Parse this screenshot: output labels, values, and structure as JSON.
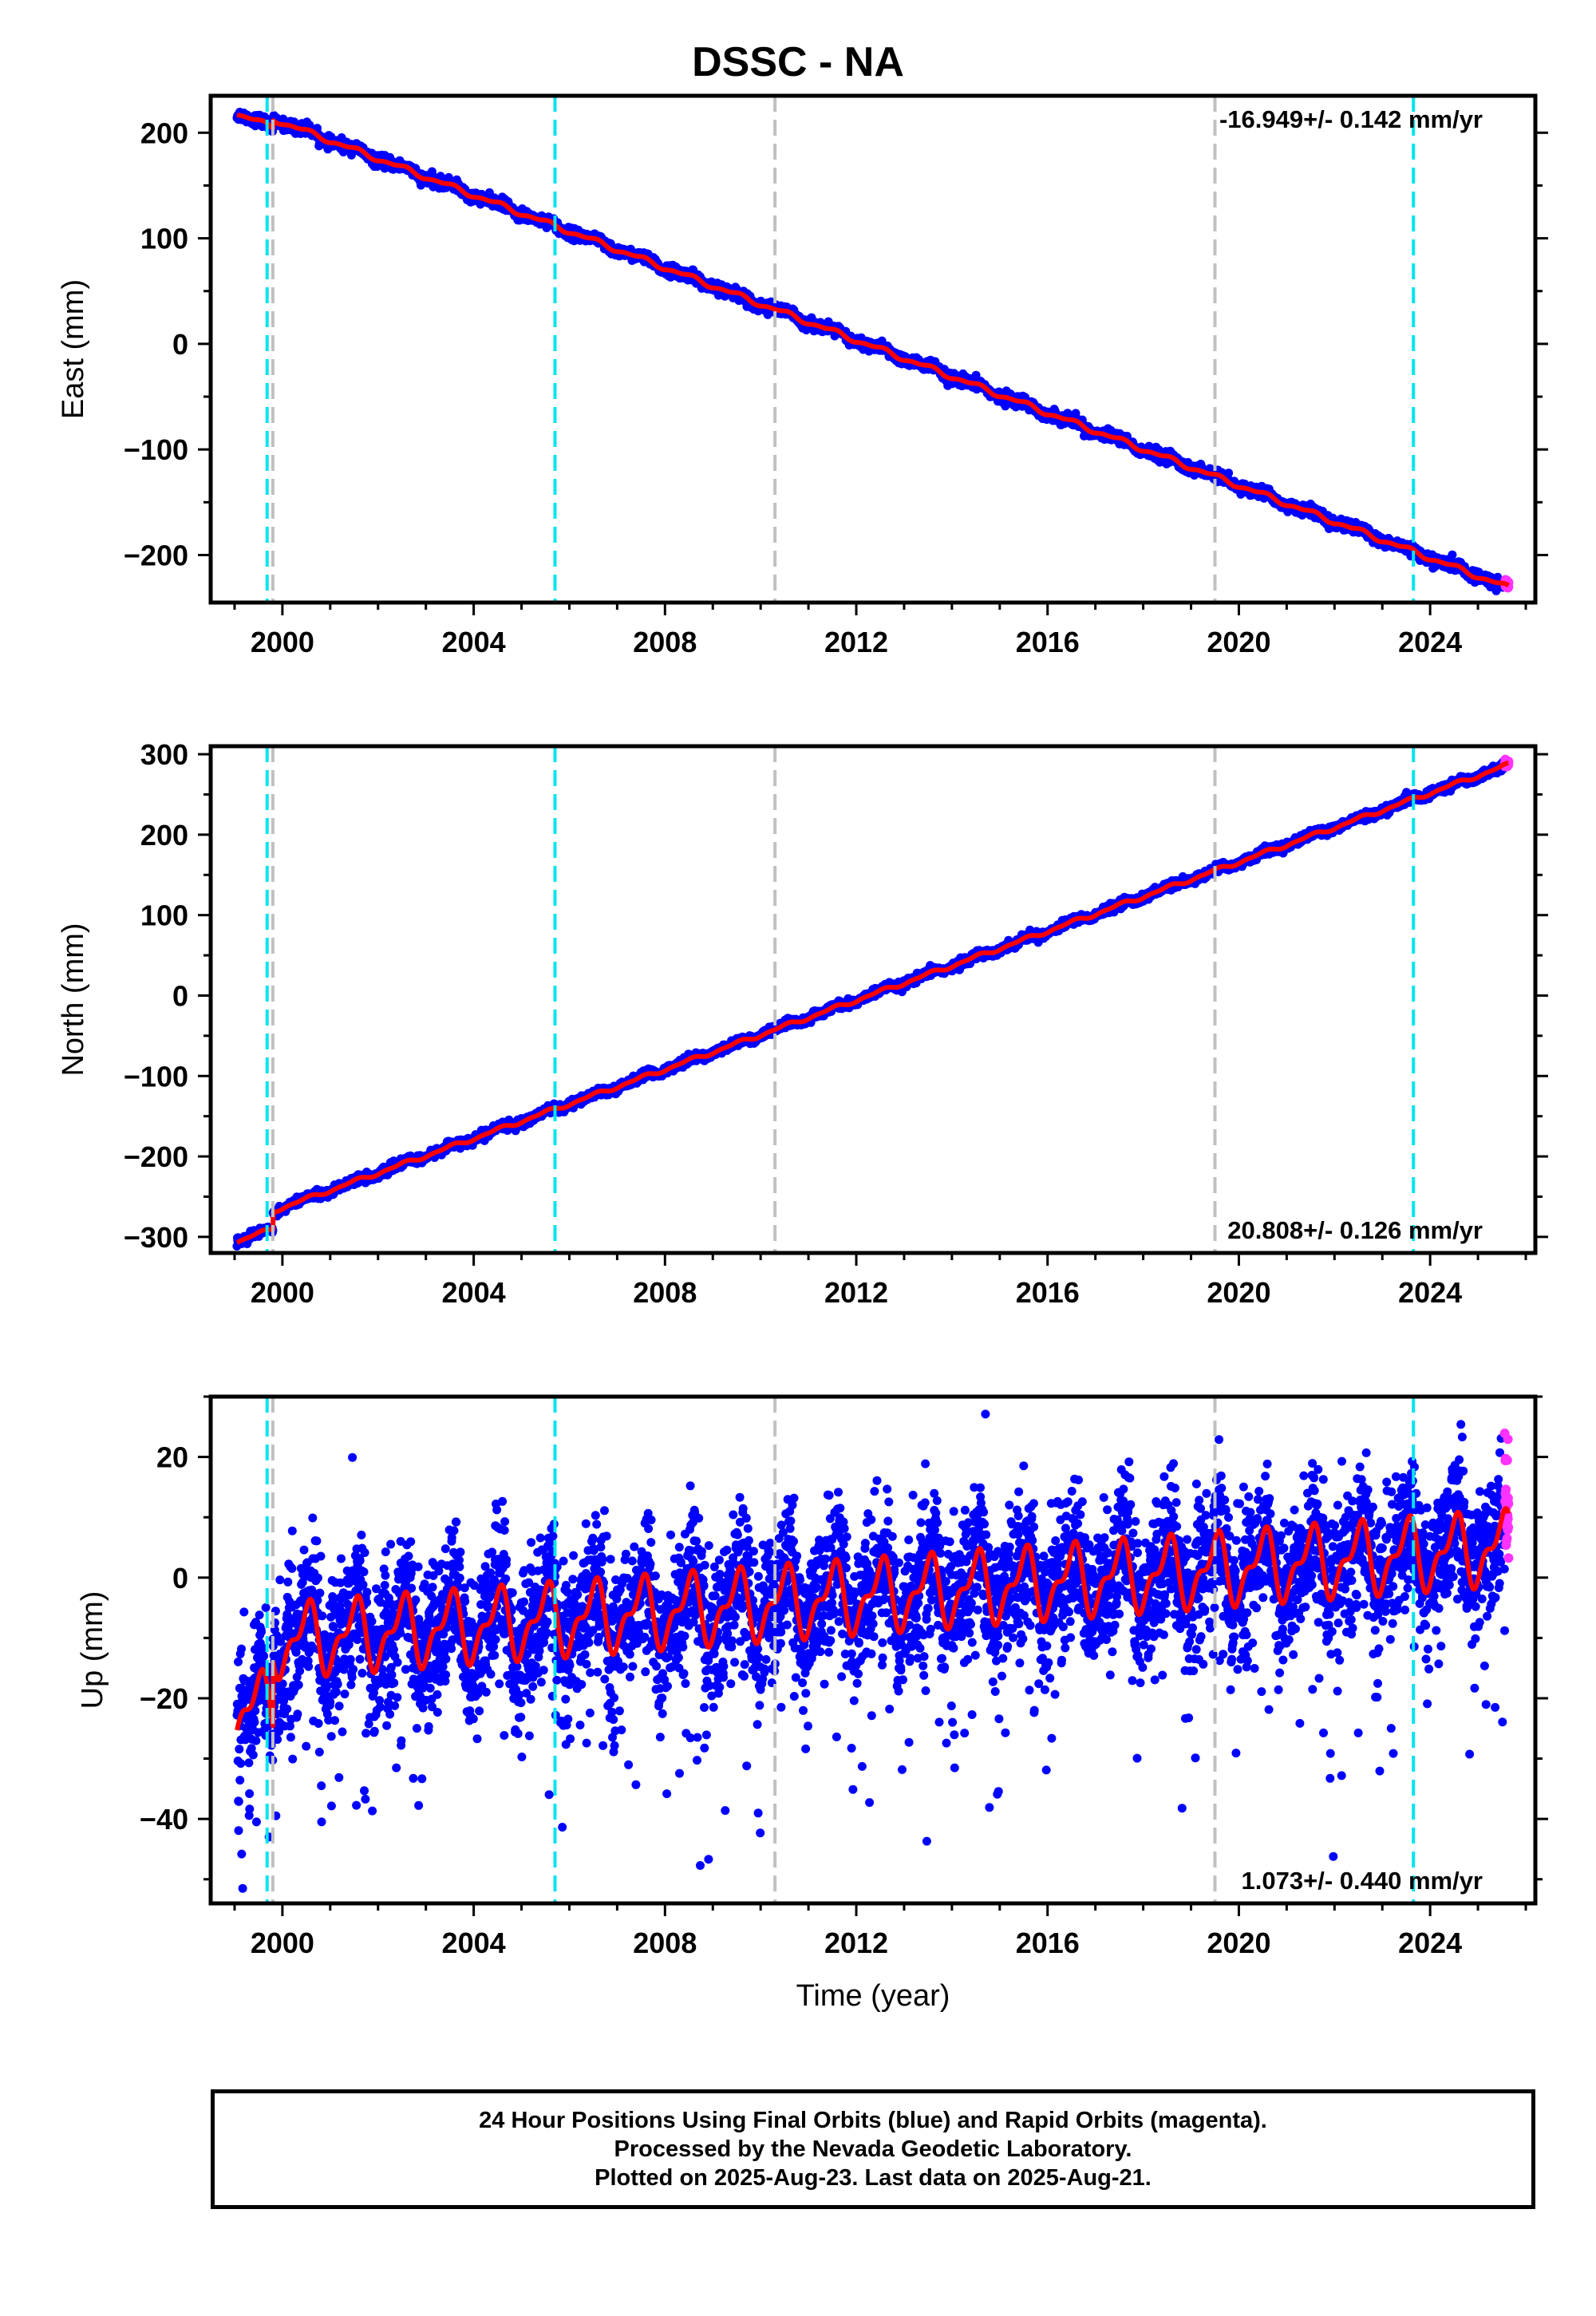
{
  "page": {
    "title": "DSSC - NA",
    "footer_lines": [
      "24 Hour Positions Using Final Orbits (blue) and Rapid Orbits (magenta).",
      "Processed by the Nevada Geodetic Laboratory.",
      "Plotted on 2025-Aug-23. Last data on 2025-Aug-21."
    ]
  },
  "colors": {
    "final_orbits": "#0000ff",
    "rapid_orbits": "#ff33ff",
    "model": "#ff0000",
    "equipment_change": "#00e5ee",
    "earthquake": "#c0c0c0"
  },
  "chart_data": [
    {
      "type": "scatter",
      "panel": "east",
      "ylabel": "East (mm)",
      "xlabel": "",
      "xlim": [
        1998.5,
        2026.2
      ],
      "ylim": [
        -245,
        235
      ],
      "xticks": [
        2000,
        2004,
        2008,
        2012,
        2016,
        2020,
        2024
      ],
      "yticks": [
        200,
        100,
        0,
        -100,
        -200
      ],
      "ytick_labels": [
        "200",
        "100",
        "0",
        "−100",
        "−200"
      ],
      "rate_text": "-16.949+/- 0.142 mm/yr",
      "rate_position": "top-right",
      "data_start": 1999.05,
      "data_end": 2025.64,
      "start_value": 218,
      "end_value": -231,
      "noise_mm": 2.5,
      "offsets": [
        {
          "year": 1999.8,
          "value": 8
        }
      ],
      "model_breaks": [
        1999.8
      ],
      "annual_amplitude": 2,
      "cyan_lines": [
        1999.68,
        2005.7,
        2023.65
      ],
      "gray_lines": [
        1999.8,
        2010.3,
        2019.5
      ],
      "series": [
        {
          "name": "Final Orbits (blue)",
          "color": "#0000ff"
        },
        {
          "name": "Rapid Orbits (magenta)",
          "color": "#ff33ff"
        }
      ]
    },
    {
      "type": "scatter",
      "panel": "north",
      "ylabel": "North (mm)",
      "xlabel": "",
      "xlim": [
        1998.5,
        2026.2
      ],
      "ylim": [
        -320,
        310
      ],
      "xticks": [
        2000,
        2004,
        2008,
        2012,
        2016,
        2020,
        2024
      ],
      "yticks": [
        300,
        200,
        100,
        0,
        -100,
        -200,
        -300
      ],
      "ytick_labels": [
        "300",
        "200",
        "100",
        "0",
        "−100",
        "−200",
        "−300"
      ],
      "rate_text": "20.808+/- 0.126 mm/yr",
      "rate_position": "bottom-right",
      "data_start": 1999.05,
      "data_end": 2025.64,
      "start_value": -306,
      "end_value": 287,
      "noise_mm": 2.5,
      "offsets": [
        {
          "year": 1999.8,
          "value": 22
        }
      ],
      "model_breaks": [
        1999.8
      ],
      "annual_amplitude": 2,
      "cyan_lines": [
        1999.68,
        2005.7,
        2023.65
      ],
      "gray_lines": [
        1999.8,
        2010.3,
        2019.5
      ],
      "series": [
        {
          "name": "Final Orbits (blue)",
          "color": "#0000ff"
        },
        {
          "name": "Rapid Orbits (magenta)",
          "color": "#ff33ff"
        }
      ]
    },
    {
      "type": "scatter",
      "panel": "up",
      "ylabel": "Up (mm)",
      "xlabel": "Time (year)",
      "xlim": [
        1998.5,
        2026.2
      ],
      "ylim": [
        -54,
        30
      ],
      "xticks": [
        2000,
        2004,
        2008,
        2012,
        2016,
        2020,
        2024
      ],
      "yticks": [
        20,
        0,
        -20,
        -40
      ],
      "ytick_labels": [
        "20",
        "0",
        "−20",
        "−40"
      ],
      "rate_text": "1.073+/- 0.440 mm/yr",
      "rate_position": "bottom-right",
      "data_start": 1999.05,
      "data_end": 2025.64,
      "start_value": -22,
      "end_value": 5,
      "noise_mm": 6,
      "offsets": [
        {
          "year": 1999.8,
          "value": 11
        }
      ],
      "model_breaks": [
        1999.8,
        2005.7,
        2019.5,
        2023.65
      ],
      "annual_amplitude": 5,
      "cyan_lines": [
        1999.68,
        2005.7,
        2023.65
      ],
      "gray_lines": [
        1999.8,
        2010.3,
        2019.5
      ],
      "series": [
        {
          "name": "Final Orbits (blue)",
          "color": "#0000ff"
        },
        {
          "name": "Rapid Orbits (magenta)",
          "color": "#ff33ff"
        }
      ]
    }
  ]
}
